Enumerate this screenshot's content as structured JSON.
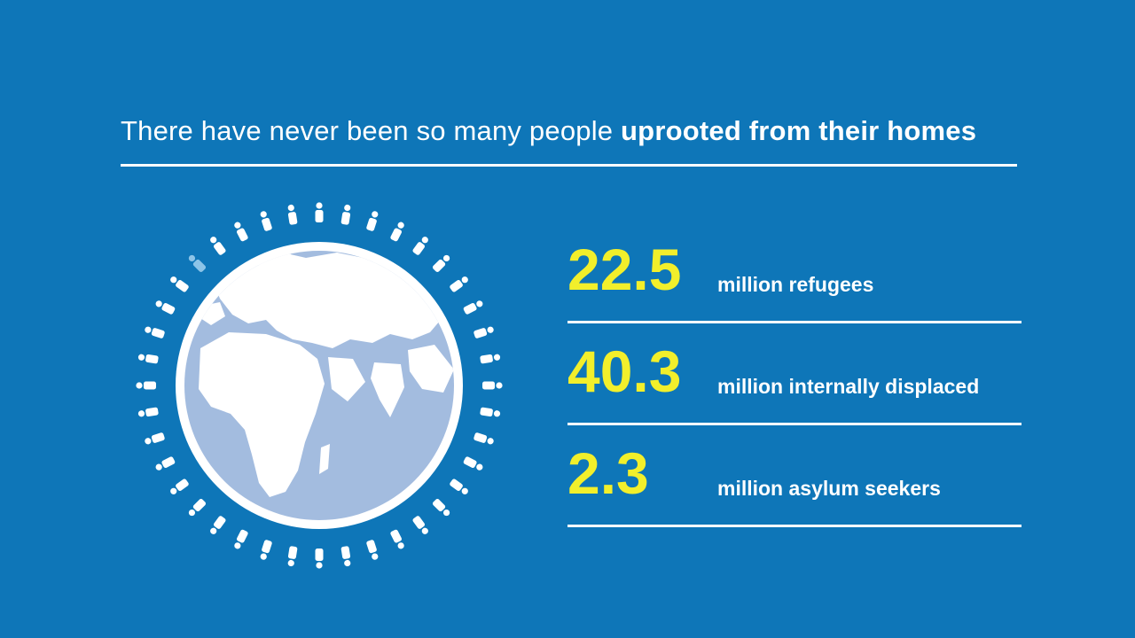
{
  "headline": {
    "normal": "There have never been so many people ",
    "bold": "uprooted from their homes"
  },
  "figure": {
    "icon": "globe-with-people-icon",
    "people_icon": "person-icon",
    "people_count": 40,
    "highlighted_people": 1,
    "highlight_color": "#8cc4e8"
  },
  "stats": [
    {
      "value": "22.5",
      "label": "million refugees"
    },
    {
      "value": "40.3",
      "label": "million internally displaced"
    },
    {
      "value": "2.3",
      "label": "million asylum seekers"
    }
  ],
  "colors": {
    "background": "#0e76b8",
    "accent": "#f2ef2b",
    "globe": "#a3bcdf",
    "text": "#ffffff"
  }
}
